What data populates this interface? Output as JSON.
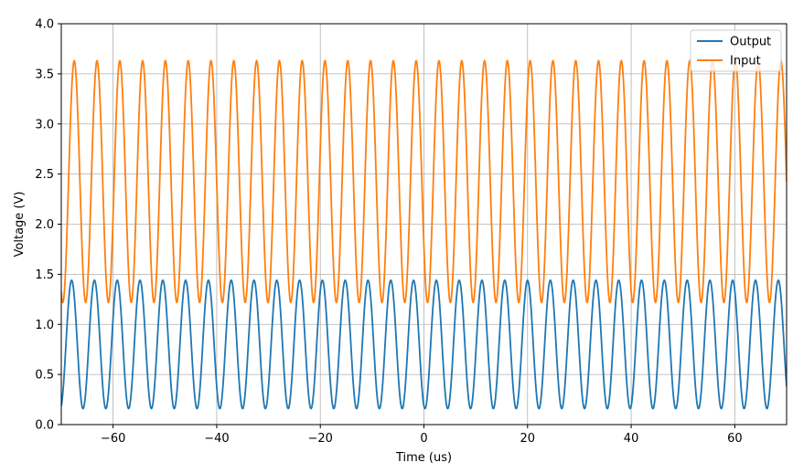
{
  "chart_data": {
    "type": "line",
    "title": "",
    "xlabel": "Time (us)",
    "ylabel": "Voltage (V)",
    "xlim": [
      -70,
      70
    ],
    "ylim": [
      0.0,
      4.0
    ],
    "grid": true,
    "legend_position": "top-right",
    "xticks": [
      -60,
      -40,
      -20,
      0,
      20,
      40,
      60
    ],
    "xtick_labels": [
      "−60",
      "−40",
      "−20",
      "0",
      "20",
      "40",
      "60"
    ],
    "yticks": [
      0.0,
      0.5,
      1.0,
      1.5,
      2.0,
      2.5,
      3.0,
      3.5,
      4.0
    ],
    "ytick_labels": [
      "0.0",
      "0.5",
      "1.0",
      "1.5",
      "2.0",
      "2.5",
      "3.0",
      "3.5",
      "4.0"
    ],
    "series": [
      {
        "name": "Output",
        "color": "#1f77b4",
        "waveform": "sine",
        "period_us": 4.4,
        "min": 0.16,
        "max": 1.44,
        "first_peak_us": -68.0
      },
      {
        "name": "Input",
        "color": "#ff7f0e",
        "waveform": "sine",
        "period_us": 4.4,
        "min": 1.22,
        "max": 3.63,
        "first_peak_us": -67.5
      }
    ]
  }
}
